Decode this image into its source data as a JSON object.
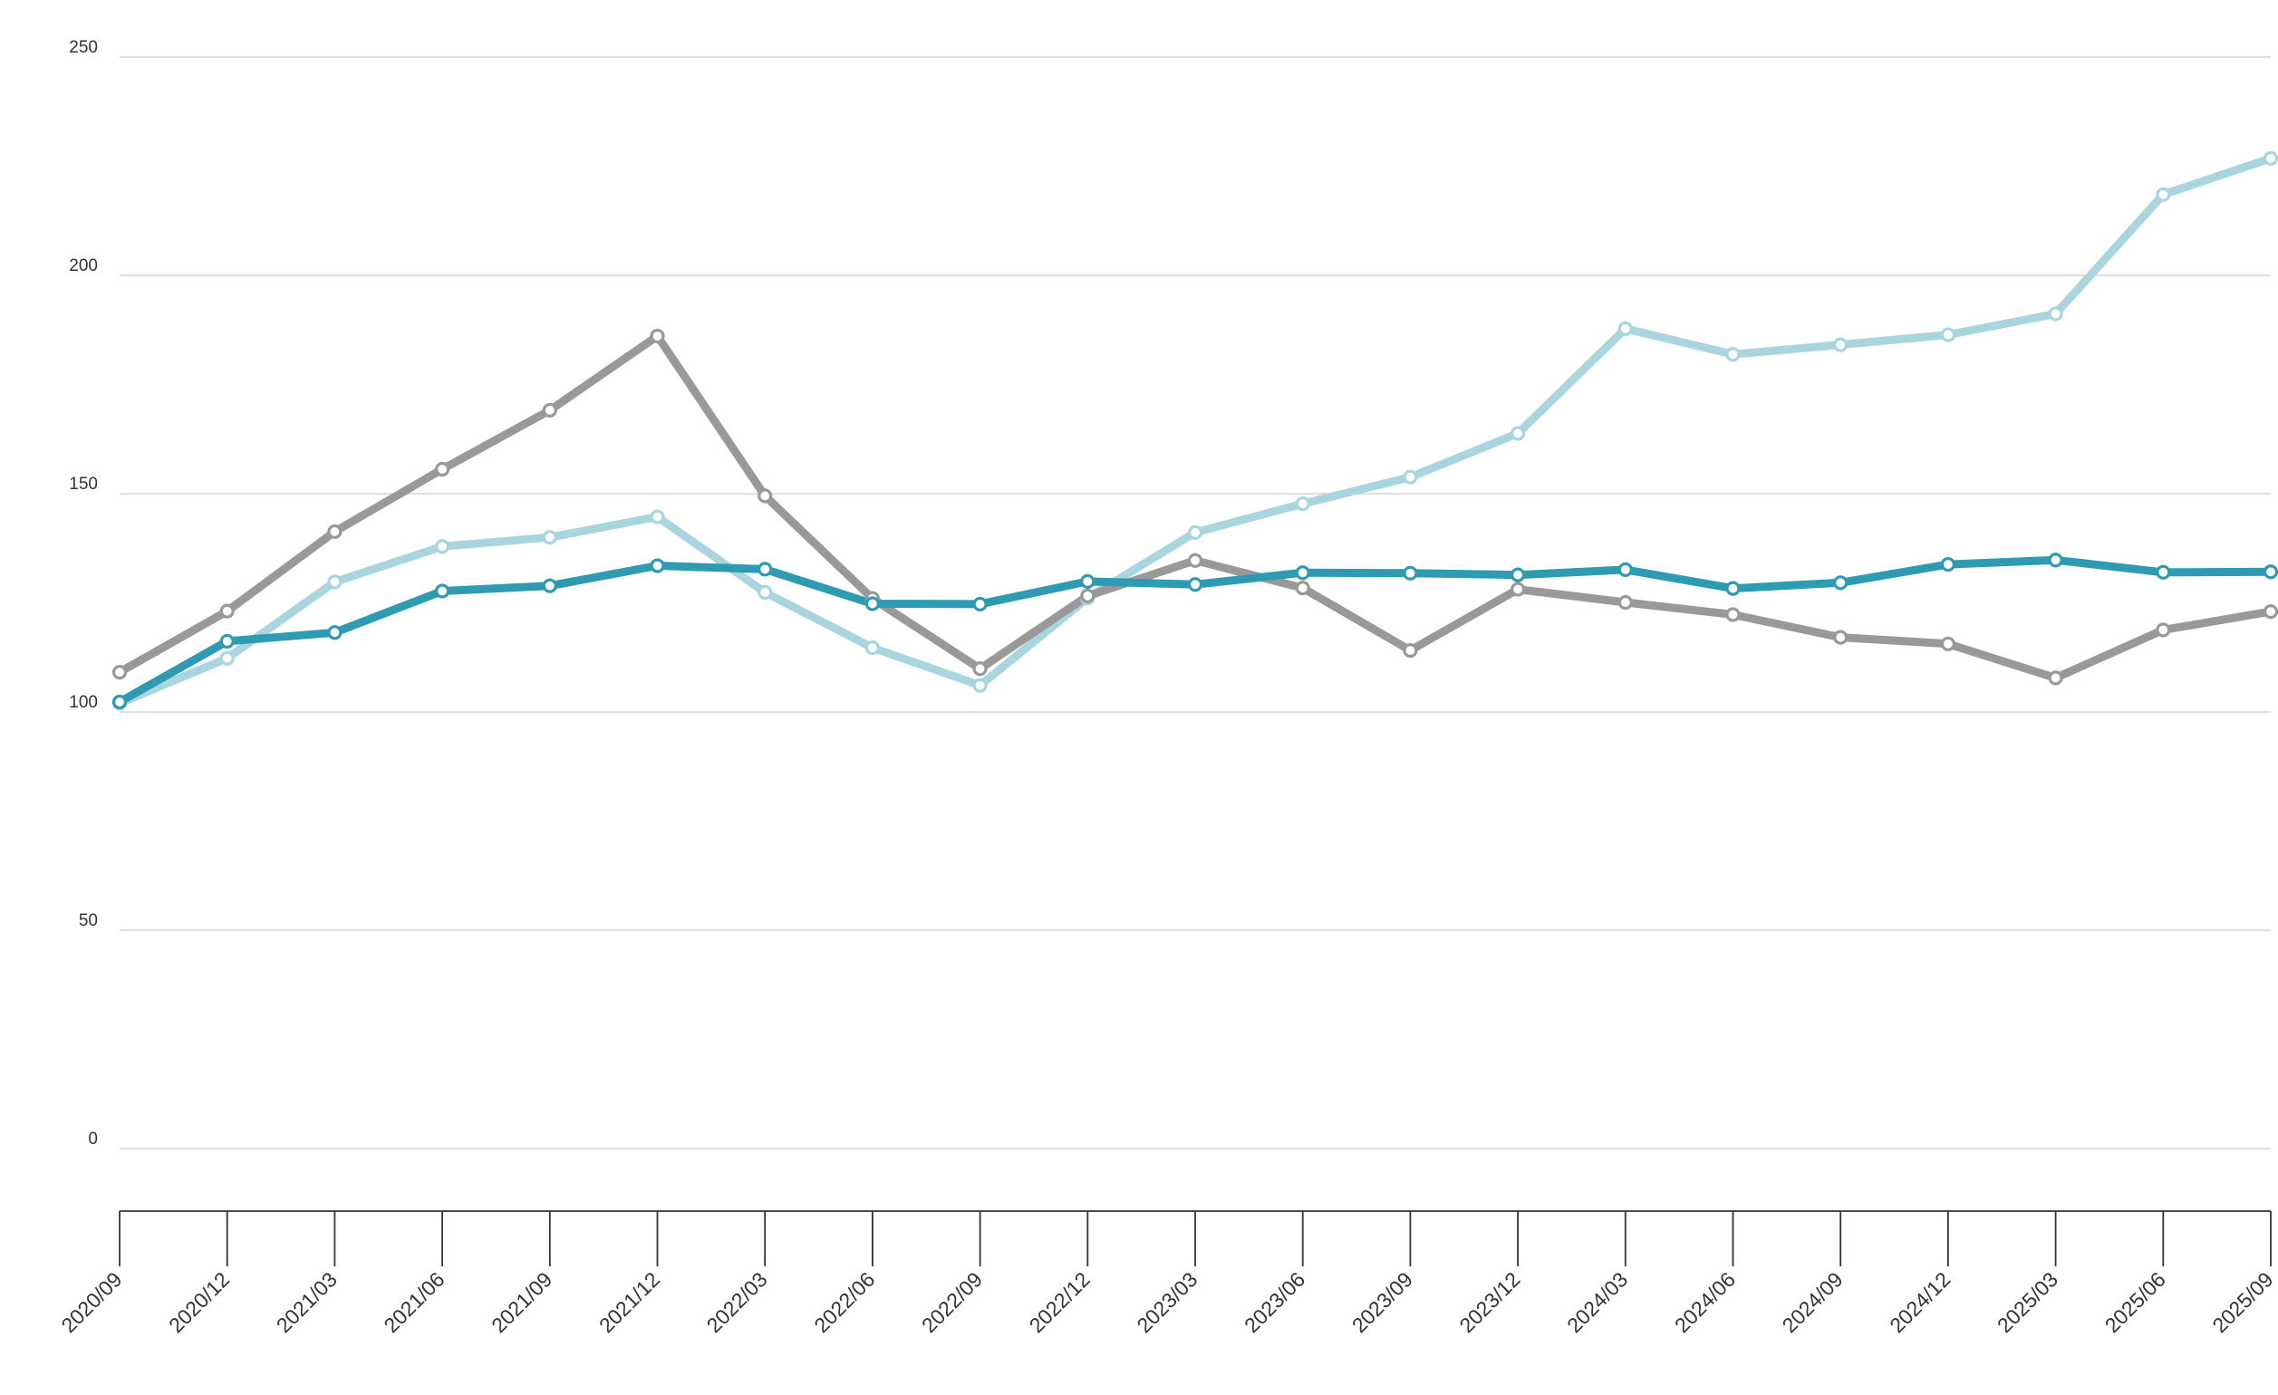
{
  "chart_data": {
    "type": "line",
    "title": "",
    "xlabel": "",
    "ylabel": "",
    "ylim": [
      0,
      250
    ],
    "yticks": [
      0,
      50,
      100,
      150,
      200,
      250
    ],
    "grid": true,
    "legend": "none",
    "categories": [
      "2020/09",
      "2020/12",
      "2021/03",
      "2021/06",
      "2021/09",
      "2021/12",
      "2022/03",
      "2022/06",
      "2022/09",
      "2022/12",
      "2023/03",
      "2023/06",
      "2023/09",
      "2023/12",
      "2024/03",
      "2024/06",
      "2024/09",
      "2024/12",
      "2025/03",
      "2025/06",
      "2025/09"
    ],
    "series": [
      {
        "color": "#a8d5de",
        "values": [
          102,
          112.3,
          129.8,
          137.9,
          140,
          144.7,
          127.4,
          114.7,
          106.1,
          126.1,
          141.1,
          147.7,
          153.8,
          163.8,
          187.8,
          181.9,
          184.1,
          186.4,
          191.2,
          218.5,
          226.8
        ]
      },
      {
        "color": "#999999",
        "values": [
          109.1,
          123.1,
          141.3,
          155.6,
          169.1,
          186.1,
          149.5,
          126,
          109.9,
          126.6,
          134.7,
          128.4,
          114.1,
          128.1,
          125.1,
          122.3,
          117.1,
          115.6,
          107.8,
          118.8,
          123
        ]
      },
      {
        "color": "#2e9bb3",
        "values": [
          102.3,
          116.2,
          118.2,
          127.7,
          128.9,
          133.5,
          132.7,
          124.8,
          124.7,
          129.9,
          129.2,
          131.9,
          131.8,
          131.4,
          132.6,
          128.3,
          129.6,
          133.8,
          134.8,
          132,
          132.1
        ]
      }
    ]
  }
}
